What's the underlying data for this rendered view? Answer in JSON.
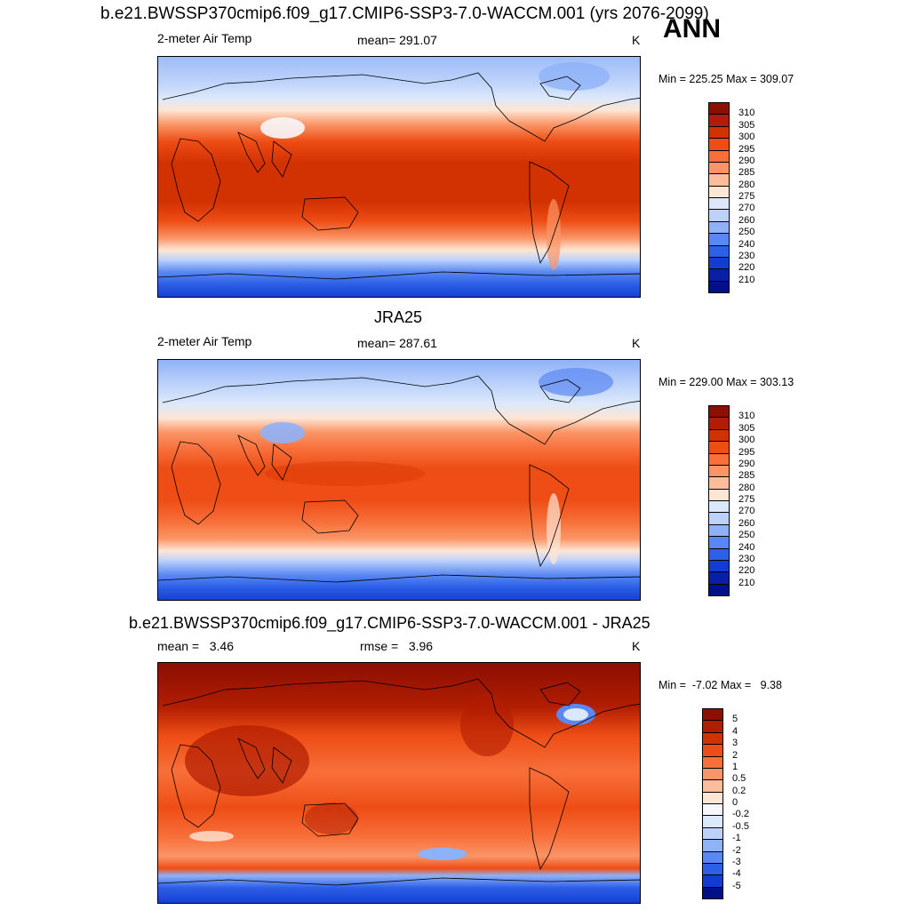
{
  "header": {
    "title": "b.e21.BWSSP370cmip6.f09_g17.CMIP6-SSP3-7.0-WACCM.001 (yrs 2076-2099)",
    "season": "ANN"
  },
  "panels": [
    {
      "variable": "2-meter Air Temp",
      "mean_text": "mean= 291.07",
      "units": "K",
      "minmax_text": "Min = 225.25 Max = 309.07",
      "colorbar": {
        "labels": [
          "310",
          "305",
          "300",
          "295",
          "290",
          "285",
          "280",
          "275",
          "270",
          "260",
          "250",
          "240",
          "230",
          "220",
          "210"
        ],
        "colors": [
          "#8b0f02",
          "#b11d02",
          "#d23102",
          "#ee4d15",
          "#f86f3a",
          "#fb9567",
          "#fdbd9c",
          "#fde6d5",
          "#dbe8fb",
          "#bcd2fb",
          "#8eb1f7",
          "#5a88f2",
          "#2d5fe7",
          "#123dd0",
          "#0a1fa8",
          "#001188"
        ]
      }
    },
    {
      "title": "JRA25",
      "variable": "2-meter Air Temp",
      "mean_text": "mean= 287.61",
      "units": "K",
      "minmax_text": "Min = 229.00 Max = 303.13",
      "colorbar": {
        "labels": [
          "310",
          "305",
          "300",
          "295",
          "290",
          "285",
          "280",
          "275",
          "270",
          "260",
          "250",
          "240",
          "230",
          "220",
          "210"
        ],
        "colors": [
          "#8b0f02",
          "#b11d02",
          "#d23102",
          "#ee4d15",
          "#f86f3a",
          "#fb9567",
          "#fdbd9c",
          "#fde6d5",
          "#dbe8fb",
          "#bcd2fb",
          "#8eb1f7",
          "#5a88f2",
          "#2d5fe7",
          "#123dd0",
          "#0a1fa8",
          "#001188"
        ]
      }
    },
    {
      "title": "b.e21.BWSSP370cmip6.f09_g17.CMIP6-SSP3-7.0-WACCM.001 - JRA25",
      "mean_text": "mean =   3.46",
      "rmse_text": "rmse =   3.96",
      "units": "K",
      "minmax_text": "Min =  -7.02 Max =   9.38",
      "colorbar": {
        "labels": [
          "5",
          "4",
          "3",
          "2",
          "1",
          "0.5",
          "0.2",
          "0",
          "-0.2",
          "-0.5",
          "-1",
          "-2",
          "-3",
          "-4",
          "-5"
        ],
        "colors": [
          "#8b0f02",
          "#b11d02",
          "#d23102",
          "#ee4d15",
          "#f86f3a",
          "#fb9567",
          "#fdbd9c",
          "#fde6d5",
          "#f7f7fb",
          "#dbe8fb",
          "#bcd2fb",
          "#8eb1f7",
          "#5a88f2",
          "#2d5fe7",
          "#123dd0",
          "#001188"
        ]
      }
    }
  ]
}
